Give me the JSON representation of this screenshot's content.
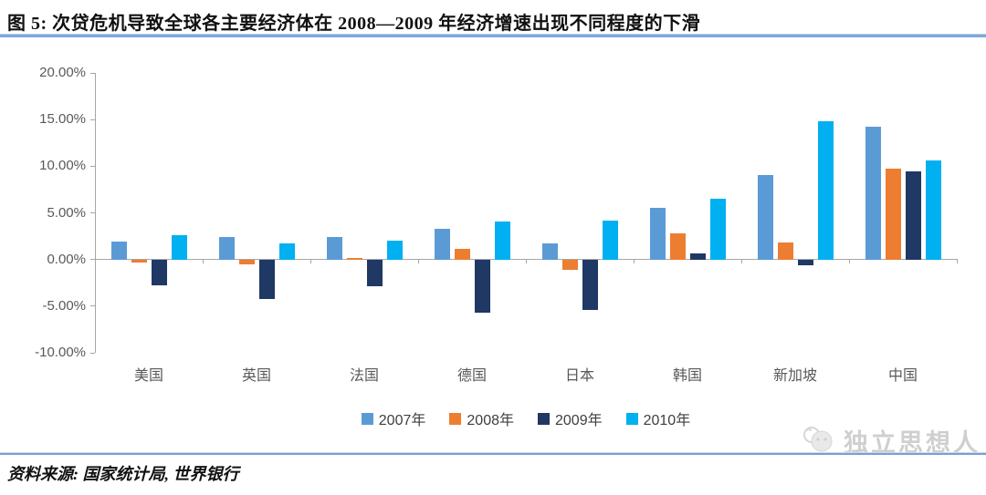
{
  "header": {
    "title": "图 5: 次贷危机导致全球各主要经济体在 2008—2009 年经济增速出现不同程度的下滑"
  },
  "chart_data": {
    "type": "bar",
    "categories": [
      "美国",
      "英国",
      "法国",
      "德国",
      "日本",
      "韩国",
      "新加坡",
      "中国"
    ],
    "series": [
      {
        "name": "2007年",
        "color": "#5B9BD5",
        "values": [
          1.9,
          2.4,
          2.4,
          3.3,
          1.7,
          5.5,
          9.1,
          14.2
        ]
      },
      {
        "name": "2008年",
        "color": "#ED7D31",
        "values": [
          -0.3,
          -0.5,
          0.2,
          1.1,
          -1.1,
          2.8,
          1.8,
          9.7
        ]
      },
      {
        "name": "2009年",
        "color": "#1F3864",
        "values": [
          -2.8,
          -4.2,
          -2.9,
          -5.7,
          -5.4,
          0.7,
          -0.6,
          9.4
        ]
      },
      {
        "name": "2010年",
        "color": "#00B0F0",
        "values": [
          2.6,
          1.7,
          2.0,
          4.1,
          4.2,
          6.5,
          14.8,
          10.6
        ]
      }
    ],
    "ylabel": "",
    "xlabel": "",
    "ylim": [
      -10,
      20
    ],
    "ytick_step": 5,
    "ytick_labels": [
      "20.00%",
      "15.00%",
      "10.00%",
      "5.00%",
      "0.00%",
      "-5.00%",
      "-10.00%"
    ],
    "grid": false,
    "legend_position": "bottom"
  },
  "footer": {
    "source": "资料来源: 国家统计局, 世界银行"
  },
  "watermark": {
    "text": "独立思想人",
    "icon": "mascot-logo-icon"
  }
}
